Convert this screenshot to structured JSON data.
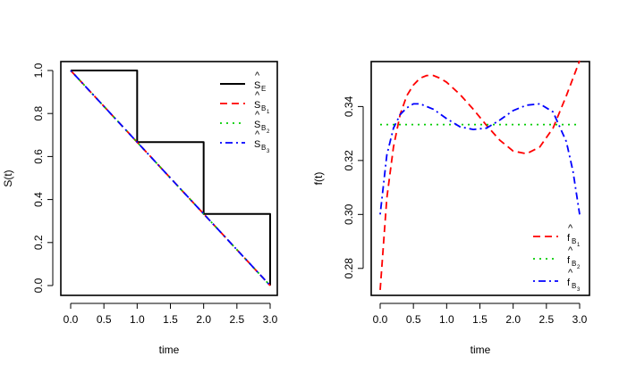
{
  "chart_data": [
    {
      "type": "line",
      "xlabel": "time",
      "ylabel": "S(t)",
      "xlim": [
        0,
        3
      ],
      "ylim": [
        0,
        1
      ],
      "xticks": [
        "0.0",
        "0.5",
        "1.0",
        "1.5",
        "2.0",
        "2.5",
        "3.0"
      ],
      "yticks": [
        "0.0",
        "0.2",
        "0.4",
        "0.6",
        "0.8",
        "1.0"
      ],
      "legend_position": "top-right",
      "series": [
        {
          "name": "S_E",
          "style": "solid",
          "color": "#000000",
          "x": [
            0,
            1,
            1,
            2,
            2,
            3,
            3
          ],
          "y": [
            1,
            1,
            0.667,
            0.667,
            0.333,
            0.333,
            0
          ]
        },
        {
          "name": "S_B1",
          "style": "dashed",
          "color": "#ff0000",
          "x": [
            0,
            3
          ],
          "y": [
            1,
            0
          ]
        },
        {
          "name": "S_B2",
          "style": "dotted",
          "color": "#00cd00",
          "x": [
            0,
            3
          ],
          "y": [
            1,
            0
          ]
        },
        {
          "name": "S_B3",
          "style": "dashdot",
          "color": "#0000ff",
          "x": [
            0,
            3
          ],
          "y": [
            1,
            0
          ]
        }
      ],
      "legend": [
        {
          "base": "S",
          "hat": "^",
          "sub": "E",
          "sub2": "",
          "style": "solid",
          "color": "#000000"
        },
        {
          "base": "S",
          "hat": "^",
          "sub": "B",
          "sub2": "1",
          "style": "dashed",
          "color": "#ff0000"
        },
        {
          "base": "S",
          "hat": "^",
          "sub": "B",
          "sub2": "2",
          "style": "dotted",
          "color": "#00cd00"
        },
        {
          "base": "S",
          "hat": "^",
          "sub": "B",
          "sub2": "3",
          "style": "dashdot",
          "color": "#0000ff"
        }
      ]
    },
    {
      "type": "line",
      "xlabel": "time",
      "ylabel": "f(t)",
      "xlim": [
        0,
        3
      ],
      "ylim": [
        0.27,
        0.357
      ],
      "xticks": [
        "0.0",
        "0.5",
        "1.0",
        "1.5",
        "2.0",
        "2.5",
        "3.0"
      ],
      "yticks": [
        "0.28",
        "0.30",
        "0.32",
        "0.34"
      ],
      "legend_position": "bottom-right",
      "series": [
        {
          "name": "f_B1",
          "style": "dashed",
          "color": "#ff0000",
          "x": [
            0,
            0.1,
            0.2,
            0.3,
            0.4,
            0.5,
            0.6,
            0.7,
            0.8,
            0.9,
            1.0,
            1.2,
            1.4,
            1.6,
            1.8,
            2.0,
            2.2,
            2.4,
            2.6,
            2.8,
            3.0
          ],
          "y": [
            0.272,
            0.306,
            0.325,
            0.337,
            0.344,
            0.348,
            0.3505,
            0.3515,
            0.3515,
            0.3505,
            0.349,
            0.3445,
            0.339,
            0.333,
            0.3275,
            0.3235,
            0.3225,
            0.325,
            0.332,
            0.344,
            0.357
          ]
        },
        {
          "name": "f_B2",
          "style": "dotted",
          "color": "#00cd00",
          "x": [
            0,
            3
          ],
          "y": [
            0.3333,
            0.3333
          ]
        },
        {
          "name": "f_B3",
          "style": "dashdot",
          "color": "#0000ff",
          "x": [
            0,
            0.1,
            0.2,
            0.3,
            0.4,
            0.5,
            0.6,
            0.8,
            1.0,
            1.2,
            1.4,
            1.6,
            1.8,
            2.0,
            2.2,
            2.4,
            2.6,
            2.8,
            2.9,
            3.0
          ],
          "y": [
            0.3,
            0.322,
            0.332,
            0.337,
            0.3395,
            0.341,
            0.341,
            0.339,
            0.3355,
            0.3325,
            0.3315,
            0.332,
            0.335,
            0.3385,
            0.3405,
            0.341,
            0.338,
            0.327,
            0.316,
            0.3
          ]
        }
      ],
      "legend": [
        {
          "base": "f",
          "hat": "^",
          "sub": "B",
          "sub2": "1",
          "style": "dashed",
          "color": "#ff0000"
        },
        {
          "base": "f",
          "hat": "^",
          "sub": "B",
          "sub2": "2",
          "style": "dotted",
          "color": "#00cd00"
        },
        {
          "base": "f",
          "hat": "^",
          "sub": "B",
          "sub2": "3",
          "style": "dashdot",
          "color": "#0000ff"
        }
      ]
    }
  ]
}
